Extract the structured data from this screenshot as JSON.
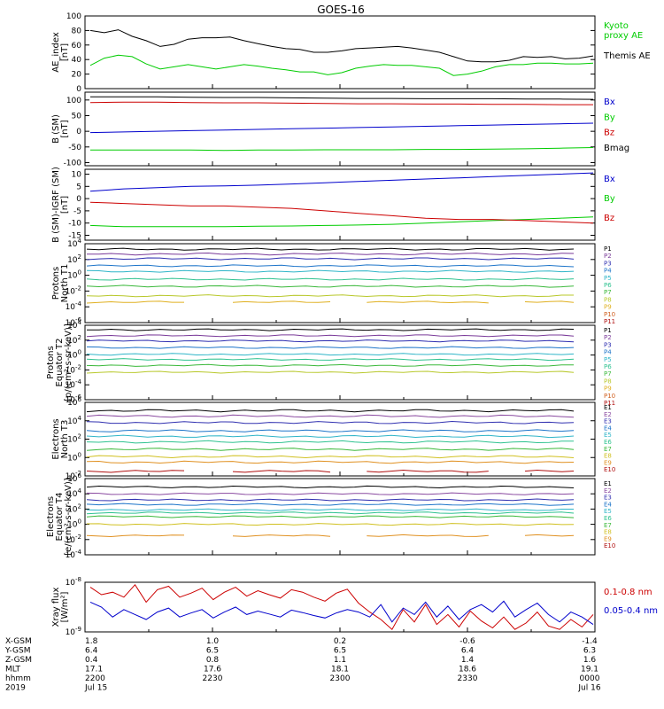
{
  "title": "GOES-16",
  "colors": {
    "black": "#000000",
    "green": "#00cc00",
    "blue": "#0000cc",
    "red": "#cc0000",
    "proton_bands": [
      "#000000",
      "#7a3a99",
      "#2d2db0",
      "#1c74c9",
      "#2fb5c8",
      "#2fc290",
      "#3ab83a",
      "#b8c82a",
      "#e0b020",
      "#d06020",
      "#b01010"
    ],
    "electron_bands": [
      "#000000",
      "#8a4aa0",
      "#3030b0",
      "#1c74c9",
      "#2fb5c8",
      "#2fc290",
      "#3ab83a",
      "#d0c020",
      "#e09020",
      "#b01010"
    ]
  },
  "time_axis": {
    "rows": [
      {
        "label": "X-GSM",
        "values": [
          "1.8",
          "1.0",
          "0.2",
          "-0.6",
          "-1.4"
        ]
      },
      {
        "label": "Y-GSM",
        "values": [
          "6.4",
          "6.5",
          "6.5",
          "6.4",
          "6.3"
        ]
      },
      {
        "label": "Z-GSM",
        "values": [
          "0.4",
          "0.8",
          "1.1",
          "1.4",
          "1.6"
        ]
      },
      {
        "label": "MLT",
        "values": [
          "17.1",
          "17.6",
          "18.1",
          "18.6",
          "19.1"
        ]
      },
      {
        "label": "hhmm",
        "values": [
          "2200",
          "2230",
          "2300",
          "2330",
          "0000"
        ]
      },
      {
        "label": "2019",
        "values": [
          "Jul 15",
          "",
          "",
          "",
          "Jul 16"
        ]
      }
    ]
  },
  "chart_data": [
    {
      "type": "line",
      "ylabel": "AE_index\n[nT]",
      "ylim": [
        0,
        100
      ],
      "yticks": [
        "0",
        "20",
        "40",
        "60",
        "80",
        "100"
      ],
      "legend": [
        "Kyoto\nproxy AE",
        "Themis AE"
      ],
      "series": [
        {
          "name": "Kyoto proxy AE",
          "color": "green",
          "values": [
            32,
            42,
            46,
            44,
            34,
            27,
            30,
            33,
            30,
            27,
            30,
            33,
            31,
            28,
            26,
            23,
            23,
            19,
            22,
            28,
            31,
            33,
            32,
            32,
            30,
            28,
            18,
            20,
            24,
            30,
            33,
            33,
            35,
            35,
            34,
            34,
            35
          ]
        },
        {
          "name": "Themis AE",
          "color": "black",
          "values": [
            80,
            77,
            81,
            72,
            66,
            58,
            61,
            68,
            70,
            70,
            71,
            66,
            62,
            58,
            55,
            54,
            50,
            50,
            52,
            55,
            56,
            57,
            58,
            56,
            53,
            50,
            44,
            38,
            37,
            37,
            39,
            44,
            43,
            44,
            41,
            42,
            45
          ]
        }
      ]
    },
    {
      "type": "line",
      "ylabel": "B (SM)\n[nT]",
      "ylim": [
        -110,
        125
      ],
      "yticks": [
        "-100",
        "-50",
        "0",
        "50",
        "100"
      ],
      "legend": [
        "Bx",
        "By",
        "Bz",
        "Bmag"
      ],
      "series": [
        {
          "name": "Bx",
          "color": "blue",
          "values": [
            -4,
            -2,
            0,
            2,
            4,
            6,
            8,
            10,
            12,
            14,
            16,
            18,
            20,
            22,
            24,
            26
          ]
        },
        {
          "name": "By",
          "color": "green",
          "values": [
            -60,
            -60,
            -60,
            -60,
            -61,
            -60,
            -60,
            -59,
            -59,
            -59,
            -58,
            -58,
            -57,
            -56,
            -54,
            -52
          ]
        },
        {
          "name": "Bz",
          "color": "red",
          "values": [
            92,
            93,
            93,
            92,
            91,
            91,
            90,
            89,
            88,
            88,
            87,
            87,
            86,
            86,
            85,
            85
          ]
        },
        {
          "name": "Bmag",
          "color": "black",
          "values": [
            110,
            110,
            110,
            109,
            108,
            108,
            107,
            106,
            105,
            105,
            104,
            104,
            104,
            103,
            103,
            102
          ]
        }
      ]
    },
    {
      "type": "line",
      "ylabel": "B (SM)-IGRF (SM)\n[nT]",
      "ylim": [
        -17,
        12
      ],
      "yticks": [
        "-15",
        "-10",
        "-5",
        "0",
        "5",
        "10"
      ],
      "legend": [
        "Bx",
        "By",
        "Bz"
      ],
      "series": [
        {
          "name": "Bx",
          "color": "blue",
          "values": [
            3,
            4,
            4.5,
            5,
            5.2,
            5.5,
            6,
            6.5,
            7,
            7.5,
            8,
            8.5,
            9,
            9.5,
            10,
            10.5
          ]
        },
        {
          "name": "By",
          "color": "green",
          "values": [
            -11,
            -11.5,
            -11.5,
            -11.5,
            -11.5,
            -11.3,
            -11.2,
            -11,
            -10.8,
            -10.5,
            -10,
            -9.5,
            -9,
            -8.5,
            -8,
            -7.5
          ]
        },
        {
          "name": "Bz",
          "color": "red",
          "values": [
            -1.5,
            -2,
            -2.5,
            -3,
            -3,
            -3.5,
            -4,
            -5,
            -6,
            -7,
            -8,
            -8.5,
            -8.5,
            -9,
            -9.5,
            -10
          ]
        }
      ]
    },
    {
      "type": "line",
      "ylabel": "Protons\nNorth T1",
      "ylog": true,
      "ylim_exp": [
        -6,
        4
      ],
      "ytick_exps": [
        -6,
        -4,
        -2,
        0,
        2,
        4
      ],
      "legend": [
        "P1",
        "P2",
        "P3",
        "P4",
        "P5",
        "P6",
        "P7",
        "P8",
        "P9",
        "P10",
        "P11"
      ],
      "series": [
        {
          "name": "P1",
          "exp": 3.3
        },
        {
          "name": "P2",
          "exp": 2.7
        },
        {
          "name": "P3",
          "exp": 2.1
        },
        {
          "name": "P4",
          "exp": 1.2
        },
        {
          "name": "P5",
          "exp": 0.5
        },
        {
          "name": "P6",
          "exp": -0.5
        },
        {
          "name": "P7",
          "exp": -1.4
        },
        {
          "name": "P8",
          "exp": -2.6
        },
        {
          "name": "P9",
          "exp": -3.4,
          "gaps": true
        }
      ]
    },
    {
      "type": "line",
      "ylabel": "Protons\nEquator T2\n[p/(cm²-s-sr-keV)]",
      "ylog": true,
      "ylim_exp": [
        -6,
        4
      ],
      "ytick_exps": [
        -6,
        -4,
        -2,
        0,
        2,
        4
      ],
      "legend": [
        "P1",
        "P2",
        "P3",
        "P4",
        "P5",
        "P6",
        "P7",
        "P8",
        "P9",
        "P10",
        "P11"
      ],
      "series": [
        {
          "name": "P1",
          "exp": 3.4
        },
        {
          "name": "P2",
          "exp": 2.6
        },
        {
          "name": "P3",
          "exp": 1.9
        },
        {
          "name": "P4",
          "exp": 1.0
        },
        {
          "name": "P5",
          "exp": 0.1
        },
        {
          "name": "P6",
          "exp": -0.6
        },
        {
          "name": "P7",
          "exp": -1.4
        },
        {
          "name": "P8",
          "exp": -2.3
        }
      ]
    },
    {
      "type": "line",
      "ylabel": "Electrons\nNorth T3",
      "ylog": true,
      "ylim_exp": [
        -2,
        6
      ],
      "ytick_exps": [
        -2,
        0,
        2,
        4,
        6
      ],
      "legend": [
        "E1",
        "E2",
        "E3",
        "E4",
        "E5",
        "E6",
        "E7",
        "E8",
        "E9",
        "E10"
      ],
      "series": [
        {
          "name": "E1",
          "exp": 5.1
        },
        {
          "name": "E2",
          "exp": 4.5
        },
        {
          "name": "E3",
          "exp": 3.8
        },
        {
          "name": "E4",
          "exp": 2.9
        },
        {
          "name": "E5",
          "exp": 2.3
        },
        {
          "name": "E6",
          "exp": 1.7
        },
        {
          "name": "E7",
          "exp": 0.9
        },
        {
          "name": "E8",
          "exp": 0.1
        },
        {
          "name": "E9",
          "exp": -0.5
        },
        {
          "name": "E10",
          "exp": -1.5,
          "gaps": true
        }
      ]
    },
    {
      "type": "line",
      "ylabel": "Electrons\nEquator T4\n[e/(cm²-s-sr-keV)]",
      "ylog": true,
      "ylim_exp": [
        -4,
        6
      ],
      "ytick_exps": [
        -4,
        -2,
        0,
        2,
        4,
        6
      ],
      "legend": [
        "E1",
        "E2",
        "E3",
        "E4",
        "E5",
        "E6",
        "E7",
        "E8",
        "E9",
        "E10"
      ],
      "series": [
        {
          "name": "E1",
          "exp": 4.9
        },
        {
          "name": "E2",
          "exp": 4.0
        },
        {
          "name": "E3",
          "exp": 3.2
        },
        {
          "name": "E4",
          "exp": 2.6
        },
        {
          "name": "E5",
          "exp": 1.9
        },
        {
          "name": "E6",
          "exp": 1.5
        },
        {
          "name": "E7",
          "exp": 1.0
        },
        {
          "name": "E8",
          "exp": 0.0
        },
        {
          "name": "E9",
          "exp": -1.5,
          "gaps": true
        }
      ]
    },
    {
      "type": "line",
      "ylabel": "Xray flux\n[W/m²]",
      "ylog": true,
      "ylim_exp": [
        -9,
        -8
      ],
      "ytick_exps": [
        -9,
        -8
      ],
      "legend": [
        "0.1-0.8 nm",
        "0.05-0.4 nm"
      ],
      "series": [
        {
          "name": "0.1-0.8 nm",
          "color": "red",
          "values": [
            0.9,
            0.75,
            0.8,
            0.7,
            0.95,
            0.6,
            0.85,
            0.92,
            0.7,
            0.78,
            0.88,
            0.65,
            0.8,
            0.9,
            0.72,
            0.83,
            0.75,
            0.68,
            0.85,
            0.8,
            0.7,
            0.62,
            0.78,
            0.86,
            0.58,
            0.4,
            0.25,
            0.05,
            0.45,
            0.2,
            0.55,
            0.15,
            0.35,
            0.1,
            0.42,
            0.22,
            0.08,
            0.3,
            0.05,
            0.18,
            0.4,
            0.12,
            0.05,
            0.25,
            0.1,
            0.35
          ]
        },
        {
          "name": "0.05-0.4 nm",
          "color": "blue",
          "values": [
            0.6,
            0.5,
            0.3,
            0.45,
            0.35,
            0.25,
            0.4,
            0.48,
            0.3,
            0.38,
            0.45,
            0.28,
            0.4,
            0.5,
            0.35,
            0.42,
            0.36,
            0.3,
            0.44,
            0.39,
            0.33,
            0.28,
            0.38,
            0.45,
            0.4,
            0.3,
            0.55,
            0.2,
            0.48,
            0.35,
            0.6,
            0.3,
            0.52,
            0.25,
            0.45,
            0.55,
            0.4,
            0.62,
            0.3,
            0.45,
            0.58,
            0.35,
            0.2,
            0.4,
            0.3,
            0.15
          ]
        }
      ]
    }
  ]
}
